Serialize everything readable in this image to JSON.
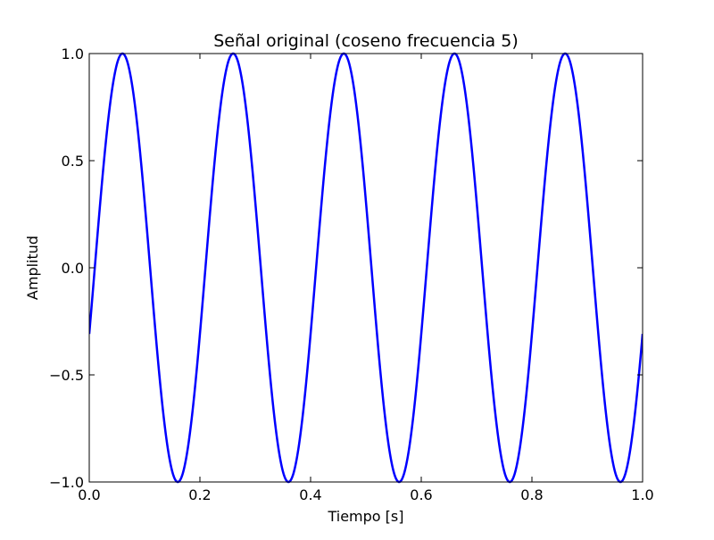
{
  "chart_data": {
    "type": "line",
    "title": "Señal original (coseno frecuencia 5)",
    "xlabel": "Tiempo [s]",
    "ylabel": "Amplitud",
    "xlim": [
      0.0,
      1.0
    ],
    "ylim": [
      -1.0,
      1.0
    ],
    "x_ticks": [
      0.0,
      0.2,
      0.4,
      0.6,
      0.8,
      1.0
    ],
    "y_ticks": [
      -1.0,
      -0.5,
      0.0,
      0.5,
      1.0
    ],
    "x_tick_labels": [
      "0.0",
      "0.2",
      "0.4",
      "0.6",
      "0.8",
      "1.0"
    ],
    "y_tick_labels": [
      "−1.0",
      "−0.5",
      "0.0",
      "0.5",
      "1.0"
    ],
    "grid": false,
    "series": [
      {
        "color": "#0000ff",
        "function": "cos(2*pi*5*t - 1.885)",
        "x": [
          0.0,
          0.06,
          0.16,
          0.26,
          0.36,
          0.46,
          0.56,
          0.66,
          0.76,
          0.86,
          0.96,
          1.0
        ],
        "y": [
          -0.31,
          1.0,
          -1.0,
          1.0,
          -1.0,
          1.0,
          -1.0,
          1.0,
          -1.0,
          1.0,
          -1.0,
          -0.31
        ]
      }
    ]
  }
}
